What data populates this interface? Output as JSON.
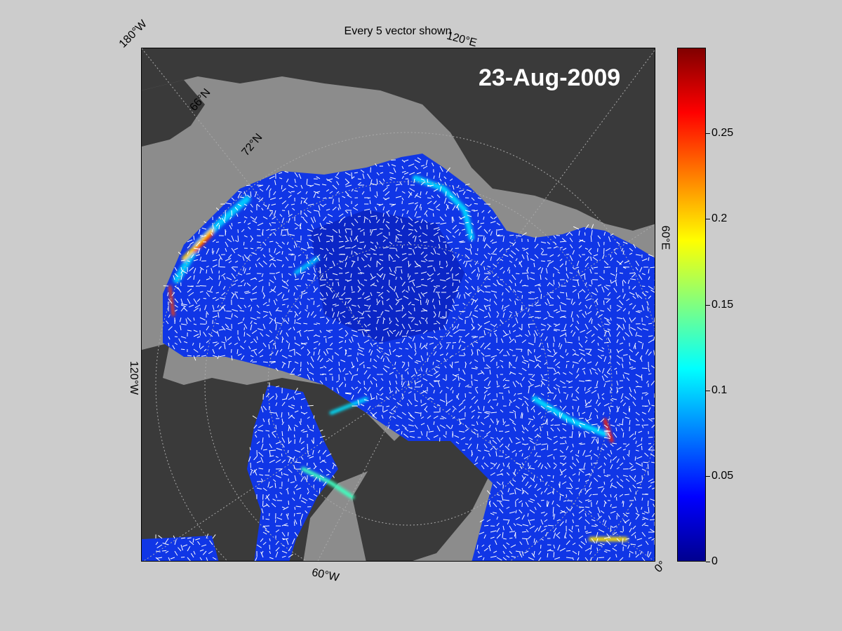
{
  "title": "Every 5 vector shown",
  "date": "23-Aug-2009",
  "map_labels": {
    "lon_180w": "180°W",
    "lon_120e": "120°E",
    "lon_60e": "60°E",
    "lon_120w": "120°W",
    "lon_60w": "60°W",
    "lon_0": "0°",
    "lat_66n": "66°N",
    "lat_72n": "72°N"
  },
  "colorbar": {
    "colormap": "jet",
    "min": 0,
    "max": 0.3,
    "ticks": [
      {
        "value": 0,
        "label": "0"
      },
      {
        "value": 0.05,
        "label": "0.05"
      },
      {
        "value": 0.1,
        "label": "0.1"
      },
      {
        "value": 0.15,
        "label": "0.15"
      },
      {
        "value": 0.2,
        "label": "0.2"
      },
      {
        "value": 0.25,
        "label": "0.25"
      }
    ]
  },
  "colors": {
    "background": "#cccccc",
    "land": "#3a3a3a",
    "shelf": "#8c8c8c",
    "ocean_low": "#1030e0",
    "ocean_deep": "#0a20b8",
    "vectors": "#ffffff",
    "highlight_high": "#ff2000"
  }
}
